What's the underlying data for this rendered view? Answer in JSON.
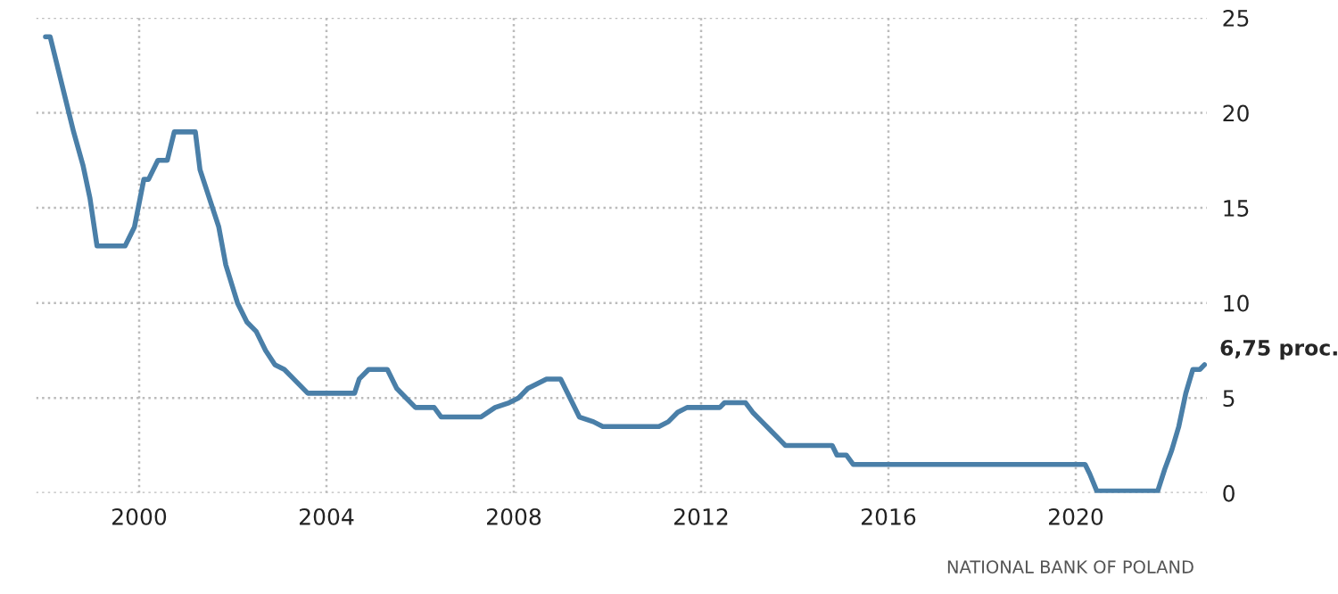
{
  "chart_data": {
    "type": "line",
    "x": [
      1998.0,
      1998.1,
      1998.2,
      1998.4,
      1998.6,
      1998.8,
      1998.95,
      1999.1,
      1999.7,
      1999.9,
      2000.1,
      2000.2,
      2000.4,
      2000.6,
      2000.75,
      2001.2,
      2001.3,
      2001.5,
      2001.7,
      2001.85,
      2002.1,
      2002.3,
      2002.5,
      2002.7,
      2002.9,
      2003.1,
      2003.3,
      2003.6,
      2004.6,
      2004.7,
      2004.9,
      2005.3,
      2005.5,
      2005.7,
      2005.9,
      2006.3,
      2006.45,
      2007.3,
      2007.6,
      2007.9,
      2008.1,
      2008.3,
      2008.5,
      2008.7,
      2009.0,
      2009.2,
      2009.4,
      2009.7,
      2009.9,
      2011.1,
      2011.3,
      2011.5,
      2011.7,
      2012.4,
      2012.5,
      2012.95,
      2013.1,
      2013.3,
      2013.5,
      2013.7,
      2013.8,
      2014.8,
      2014.9,
      2015.1,
      2015.25,
      2020.2,
      2020.3,
      2020.45,
      2021.75,
      2021.9,
      2022.05,
      2022.2,
      2022.35,
      2022.5,
      2022.65,
      2022.75
    ],
    "series": [
      {
        "color": "#4a7fa8",
        "values": [
          24,
          24,
          23,
          21,
          19,
          17.25,
          15.5,
          13,
          13,
          14,
          16.5,
          16.5,
          17.5,
          17.5,
          19,
          19,
          17,
          15.5,
          14,
          12,
          10,
          9,
          8.5,
          7.5,
          6.75,
          6.5,
          6,
          5.25,
          5.25,
          6,
          6.5,
          6.5,
          5.5,
          5,
          4.5,
          4.5,
          4,
          4,
          4.5,
          4.75,
          5,
          5.5,
          5.75,
          6,
          6,
          5,
          4,
          3.75,
          3.5,
          3.5,
          3.75,
          4.25,
          4.5,
          4.5,
          4.75,
          4.75,
          4.25,
          3.75,
          3.25,
          2.75,
          2.5,
          2.5,
          2,
          2,
          1.5,
          1.5,
          1,
          0.1,
          0.1,
          1.25,
          2.25,
          3.5,
          5.25,
          6.5,
          6.5,
          6.75
        ]
      }
    ],
    "xlim": [
      1997.8,
      2022.8
    ],
    "xticks": [
      {
        "value": 2000,
        "label": "2000"
      },
      {
        "value": 2004,
        "label": "2004"
      },
      {
        "value": 2008,
        "label": "2008"
      },
      {
        "value": 2012,
        "label": "2012"
      },
      {
        "value": 2016,
        "label": "2016"
      },
      {
        "value": 2020,
        "label": "2020"
      }
    ],
    "ylim": [
      0,
      25
    ],
    "yticks": [
      0,
      5,
      10,
      15,
      20,
      25
    ],
    "grid": true,
    "marker": "none",
    "line_style": "solid",
    "legend": false,
    "annotations": [
      {
        "text": "6,75 proc.",
        "x": 2022.75,
        "y": 6.75
      },
      "NATIONAL BANK OF POLAND"
    ]
  }
}
